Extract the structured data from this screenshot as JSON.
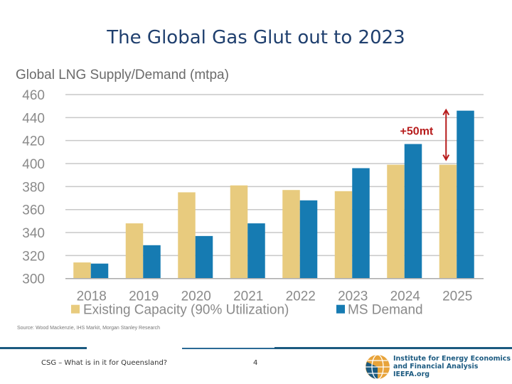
{
  "slide": {
    "title": "The Global Gas Glut out to 2023",
    "source": "Source: Wood Mackenzie, IHS Markit, Morgan Stanley Research",
    "footer_text": "CSG – What is in it for Queensland?",
    "page_number": "4",
    "logo_text": [
      "Institute for Energy Economics",
      "and Financial Analysis",
      "IEEFA.org"
    ]
  },
  "chart_data": {
    "type": "bar",
    "title": "Global LNG Supply/Demand (mtpa)",
    "xlabel": "",
    "ylabel": "",
    "ylim": [
      300,
      460
    ],
    "yticks": [
      300,
      320,
      340,
      360,
      380,
      400,
      420,
      440,
      460
    ],
    "grid": true,
    "legend_position": "bottom",
    "categories": [
      "2018",
      "2019",
      "2020",
      "2021",
      "2022",
      "2023",
      "2024",
      "2025"
    ],
    "series": [
      {
        "name": "Existing Capacity (90% Utilization)",
        "color": "#e8cb7e",
        "values": [
          314,
          348,
          375,
          381,
          377,
          376,
          399,
          399
        ]
      },
      {
        "name": "MS Demand",
        "color": "#167bb2",
        "values": [
          313,
          329,
          337,
          348,
          368,
          396,
          417,
          446
        ]
      }
    ],
    "annotation": {
      "text": "+50mt",
      "color": "#b71c1c",
      "category": "2025"
    }
  }
}
